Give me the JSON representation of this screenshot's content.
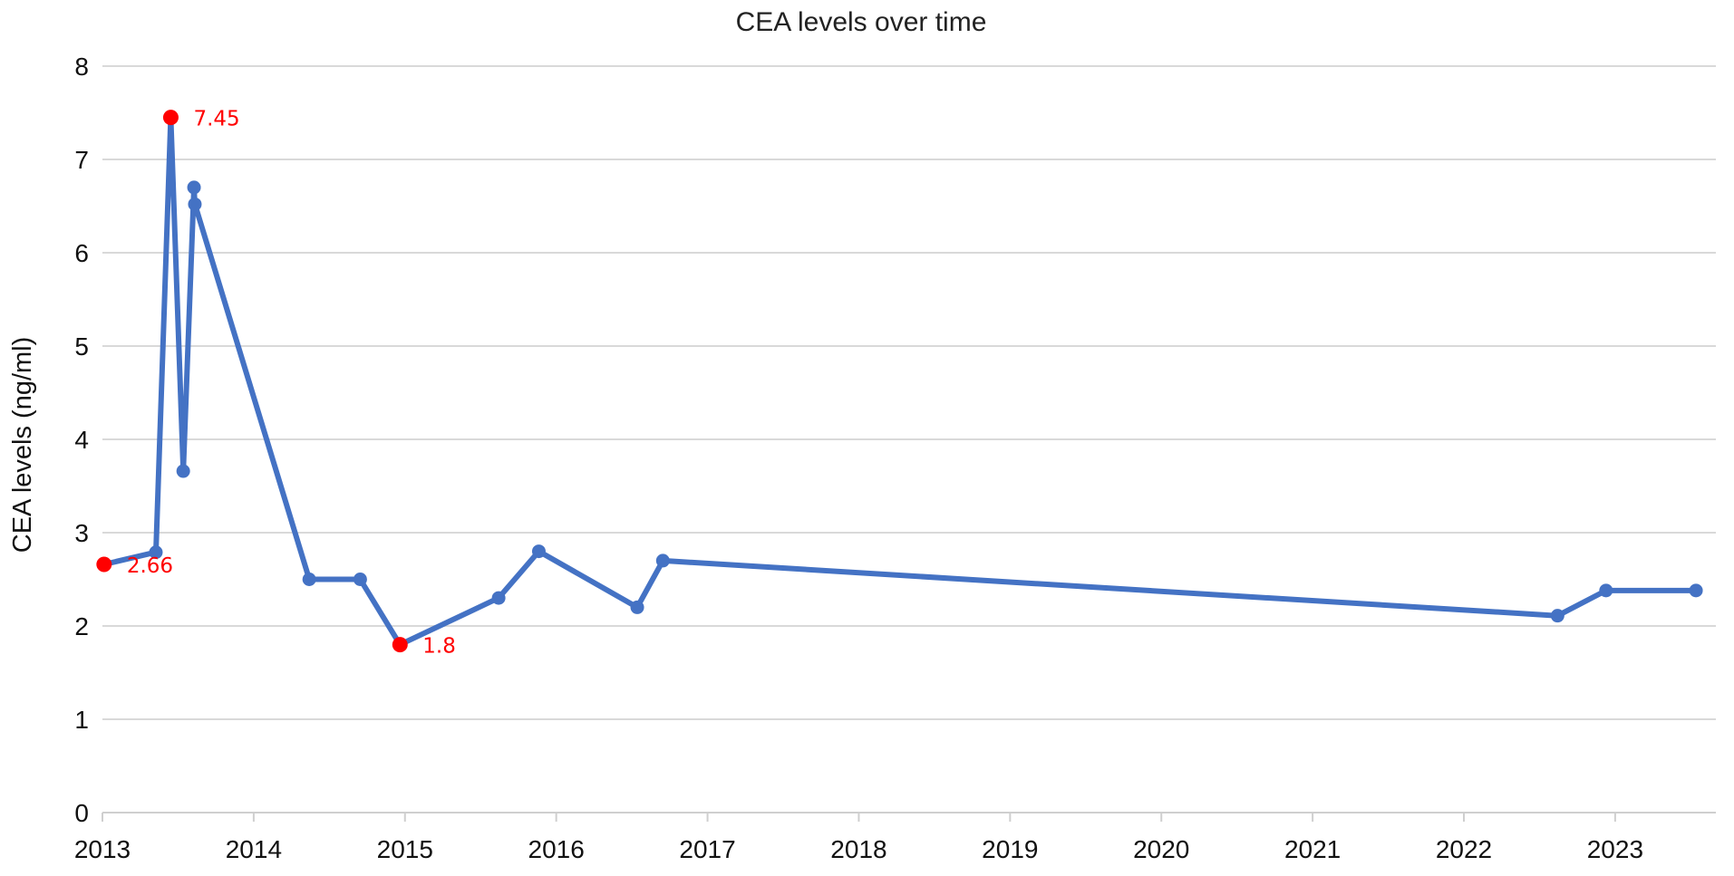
{
  "chart_data": {
    "type": "line",
    "title": "CEA levels over time",
    "xlabel": "",
    "ylabel": "CEA levels (ng/ml)",
    "ylim": [
      0,
      8
    ],
    "yticks": [
      0,
      1,
      2,
      3,
      4,
      5,
      6,
      7,
      8
    ],
    "xlim": [
      "2013-01-01",
      "2023-09-01"
    ],
    "xticks": [
      "2013",
      "2014",
      "2015",
      "2016",
      "2017",
      "2018",
      "2019",
      "2020",
      "2021",
      "2022",
      "2023"
    ],
    "grid": true,
    "legend": "none",
    "line_color": "#4472C4",
    "highlight_color": "#FF0000",
    "series": [
      {
        "points": [
          {
            "x": "2013-01-05",
            "y": 2.66,
            "highlight": true,
            "label": "2.66"
          },
          {
            "x": "2013-05-10",
            "y": 2.79
          },
          {
            "x": "2013-06-15",
            "y": 7.45,
            "highlight": true,
            "label": "7.45"
          },
          {
            "x": "2013-07-15",
            "y": 3.66
          },
          {
            "x": "2013-08-10",
            "y": 6.7
          },
          {
            "x": "2013-08-12",
            "y": 6.52
          },
          {
            "x": "2014-05-15",
            "y": 2.5
          },
          {
            "x": "2014-09-15",
            "y": 2.5
          },
          {
            "x": "2014-12-20",
            "y": 1.8,
            "highlight": true,
            "label": "1.8"
          },
          {
            "x": "2015-08-15",
            "y": 2.3
          },
          {
            "x": "2015-11-20",
            "y": 2.8
          },
          {
            "x": "2016-07-15",
            "y": 2.2
          },
          {
            "x": "2016-09-15",
            "y": 2.7
          },
          {
            "x": "2022-08-15",
            "y": 2.11
          },
          {
            "x": "2022-12-10",
            "y": 2.38
          },
          {
            "x": "2023-07-15",
            "y": 2.38
          }
        ]
      }
    ]
  }
}
